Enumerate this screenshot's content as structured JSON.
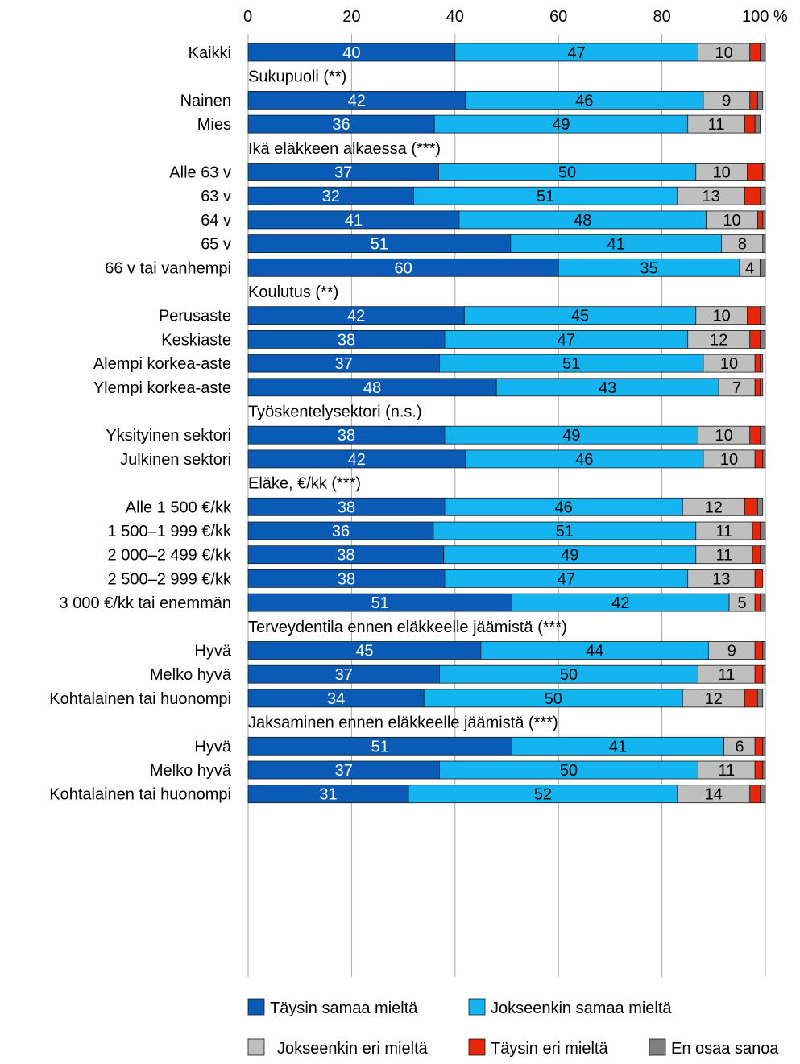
{
  "chart_data": {
    "type": "bar",
    "orientation": "horizontal",
    "stacked": true,
    "x_axis": {
      "ticks": [
        0,
        20,
        40,
        60,
        80,
        100
      ],
      "tick_labels": [
        "0",
        "20",
        "40",
        "60",
        "80",
        "100 %"
      ],
      "range": [
        0,
        100
      ],
      "position": "top",
      "grid": true
    },
    "series": [
      {
        "name": "Täysin samaa mieltä",
        "color": "#0A5BB5"
      },
      {
        "name": "Jokseenkin samaa mieltä",
        "color": "#13B4F0"
      },
      {
        "name": "Jokseenkin eri mieltä",
        "color": "#BFBFBF"
      },
      {
        "name": "Täysin eri mieltä",
        "color": "#E8260A"
      },
      {
        "name": "En osaa sanoa",
        "color": "#808080"
      }
    ],
    "legend_position": "bottom",
    "groups": [
      {
        "title": "",
        "rows": [
          {
            "label": "Kaikki",
            "values": [
              40,
              47,
              10,
              2,
              1
            ],
            "labels": [
              "40",
              "47",
              "10",
              "",
              ""
            ]
          }
        ]
      },
      {
        "title": "Sukupuoli (**)",
        "rows": [
          {
            "label": "Nainen",
            "values": [
              42,
              46,
              9,
              1.5,
              1
            ],
            "labels": [
              "42",
              "46",
              "9",
              "",
              ""
            ]
          },
          {
            "label": "Mies",
            "values": [
              36,
              49,
              11,
              2,
              1
            ],
            "labels": [
              "36",
              "49",
              "11",
              "",
              ""
            ]
          }
        ]
      },
      {
        "title": "Ikä eläkkeen alkaessa (***)",
        "rows": [
          {
            "label": "Alle 63 v",
            "values": [
              37,
              50,
              10,
              3,
              0.5
            ],
            "labels": [
              "37",
              "50",
              "10",
              "",
              ""
            ]
          },
          {
            "label": "63 v",
            "values": [
              32,
              51,
              13,
              3,
              1
            ],
            "labels": [
              "32",
              "51",
              "13",
              "",
              ""
            ]
          },
          {
            "label": "64 v",
            "values": [
              41,
              48,
              10,
              1,
              0.5
            ],
            "labels": [
              "41",
              "48",
              "10",
              "",
              ""
            ]
          },
          {
            "label": "65 v",
            "values": [
              51,
              41,
              8,
              0,
              0.5
            ],
            "labels": [
              "51",
              "41",
              "8",
              "",
              ""
            ]
          },
          {
            "label": "66 v tai vanhempi",
            "values": [
              60,
              35,
              4,
              0,
              1
            ],
            "labels": [
              "60",
              "35",
              "4",
              "",
              ""
            ]
          }
        ]
      },
      {
        "title": "Koulutus (**)",
        "rows": [
          {
            "label": "Perusaste",
            "values": [
              42,
              45,
              10,
              2.5,
              1
            ],
            "labels": [
              "42",
              "45",
              "10",
              "",
              ""
            ]
          },
          {
            "label": "Keskiaste",
            "values": [
              38,
              47,
              12,
              2,
              1
            ],
            "labels": [
              "38",
              "47",
              "12",
              "",
              ""
            ]
          },
          {
            "label": "Alempi korkea-aste",
            "values": [
              37,
              51,
              10,
              1,
              0.5
            ],
            "labels": [
              "37",
              "51",
              "10",
              "",
              ""
            ]
          },
          {
            "label": "Ylempi korkea-aste",
            "values": [
              48,
              43,
              7,
              1,
              0.5
            ],
            "labels": [
              "48",
              "43",
              "7",
              "",
              ""
            ]
          }
        ]
      },
      {
        "title": "Työskentelysektori (n.s.)",
        "rows": [
          {
            "label": "Yksityinen sektori",
            "values": [
              38,
              49,
              10,
              2,
              1
            ],
            "labels": [
              "38",
              "49",
              "10",
              "",
              ""
            ]
          },
          {
            "label": "Julkinen sektori",
            "values": [
              42,
              46,
              10,
              1.5,
              0.5
            ],
            "labels": [
              "42",
              "46",
              "10",
              "",
              ""
            ]
          }
        ]
      },
      {
        "title": "Eläke, €/kk (***)",
        "rows": [
          {
            "label": "Alle 1 500 €/kk",
            "values": [
              38,
              46,
              12,
              2.5,
              1
            ],
            "labels": [
              "38",
              "46",
              "12",
              "",
              ""
            ]
          },
          {
            "label": "1 500–1 999 €/kk",
            "values": [
              36,
              51,
              11,
              1.5,
              1
            ],
            "labels": [
              "36",
              "51",
              "11",
              "",
              ""
            ]
          },
          {
            "label": "2 000–2 499 €/kk",
            "values": [
              38,
              49,
              11,
              1.5,
              1
            ],
            "labels": [
              "38",
              "49",
              "11",
              "",
              ""
            ]
          },
          {
            "label": "2 500–2 999 €/kk",
            "values": [
              38,
              47,
              13,
              1.5,
              0
            ],
            "labels": [
              "38",
              "47",
              "13",
              "",
              ""
            ]
          },
          {
            "label": "3 000 €/kk tai enemmän",
            "values": [
              51,
              42,
              5,
              1,
              1
            ],
            "labels": [
              "51",
              "42",
              "5",
              "",
              ""
            ]
          }
        ]
      },
      {
        "title": "Terveydentila ennen eläkkeelle jäämistä (***)",
        "rows": [
          {
            "label": "Hyvä",
            "values": [
              45,
              44,
              9,
              1.5,
              0.5
            ],
            "labels": [
              "45",
              "44",
              "9",
              "",
              ""
            ]
          },
          {
            "label": "Melko hyvä",
            "values": [
              37,
              50,
              11,
              1.5,
              0.5
            ],
            "labels": [
              "37",
              "50",
              "11",
              "",
              ""
            ]
          },
          {
            "label": "Kohtalainen tai huonompi",
            "values": [
              34,
              50,
              12,
              2.5,
              1
            ],
            "labels": [
              "34",
              "50",
              "12",
              "",
              ""
            ]
          }
        ]
      },
      {
        "title": "Jaksaminen ennen eläkkeelle jäämistä (***)",
        "rows": [
          {
            "label": "Hyvä",
            "values": [
              51,
              41,
              6,
              1.5,
              0.5
            ],
            "labels": [
              "51",
              "41",
              "6",
              "",
              ""
            ]
          },
          {
            "label": "Melko hyvä",
            "values": [
              37,
              50,
              11,
              1.5,
              0.5
            ],
            "labels": [
              "37",
              "50",
              "11",
              "",
              ""
            ]
          },
          {
            "label": "Kohtalainen tai huonompi",
            "values": [
              31,
              52,
              14,
              2,
              1
            ],
            "labels": [
              "31",
              "52",
              "14",
              "",
              ""
            ]
          }
        ]
      }
    ]
  }
}
